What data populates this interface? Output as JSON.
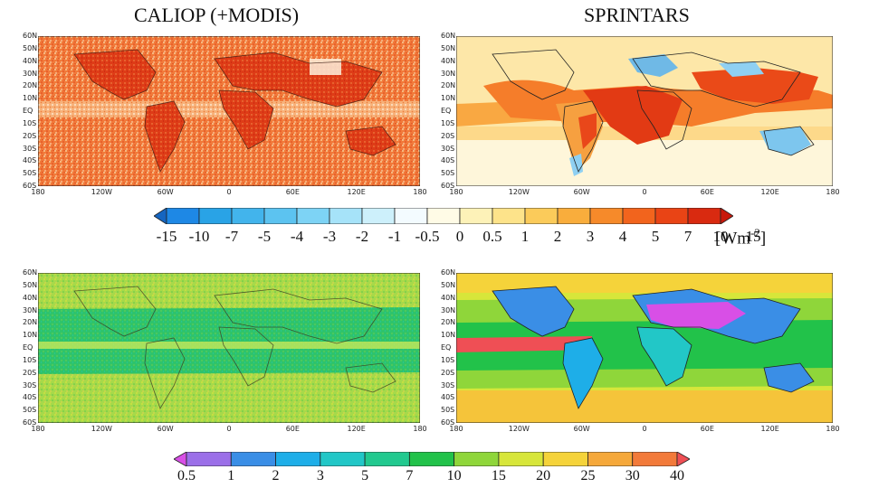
{
  "titles": {
    "left": "CALIOP (+MODIS)",
    "right": "SPRINTARS"
  },
  "lat_ticks": [
    "60N",
    "50N",
    "40N",
    "30N",
    "20N",
    "10N",
    "EQ",
    "10S",
    "20S",
    "30S",
    "40S",
    "50S",
    "60S"
  ],
  "lon_ticks": [
    "180",
    "120W",
    "60W",
    "0",
    "60E",
    "120E",
    "180"
  ],
  "colorbar_top": {
    "labels": [
      "-15",
      "-10",
      "-7",
      "-5",
      "-4",
      "-3",
      "-2",
      "-1",
      "-0.5",
      "0",
      "0.5",
      "1",
      "2",
      "3",
      "4",
      "5",
      "7",
      "10",
      "15"
    ],
    "unit_main": "[Wm",
    "unit_sup": "-2",
    "unit_end": "]",
    "colors": [
      "#1565c0",
      "#1e88e5",
      "#29a3e6",
      "#42b4ec",
      "#5cc3f0",
      "#7dd3f5",
      "#a6e3f9",
      "#cdf0fb",
      "#f3fbff",
      "#fffbe6",
      "#fdf2b8",
      "#fde38a",
      "#fbcb5a",
      "#f9ad3c",
      "#f68a2a",
      "#f2641d",
      "#e94415",
      "#d92a10",
      "#c8180b"
    ]
  },
  "colorbar_bottom": {
    "labels": [
      "0.5",
      "1",
      "2",
      "3",
      "5",
      "7",
      "10",
      "15",
      "20",
      "25",
      "30",
      "40"
    ],
    "colors": [
      "#d84fe6",
      "#9b6fe8",
      "#3a8ee6",
      "#1eaee8",
      "#22c7c7",
      "#22c98f",
      "#22c24a",
      "#8fd63a",
      "#d7e63a",
      "#f5d33a",
      "#f5a83a",
      "#f27a3a",
      "#ef4f55"
    ]
  }
}
